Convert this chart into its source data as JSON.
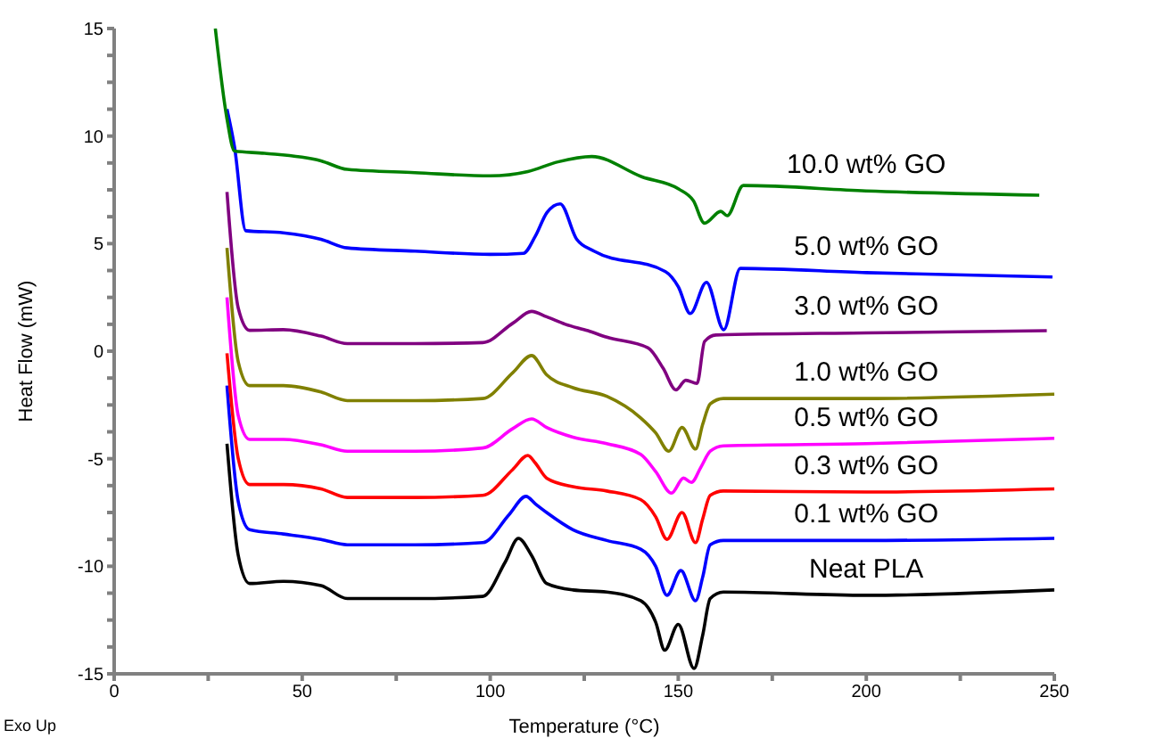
{
  "chart_data": {
    "type": "line",
    "xlabel": "Temperature (°C)",
    "ylabel": "Heat Flow (mW)",
    "xlim": [
      0,
      250
    ],
    "ylim": [
      -15,
      15
    ],
    "xticks": [
      0,
      {
        "value": 25,
        "label": null
      },
      50,
      {
        "value": 75,
        "label": null
      },
      100,
      {
        "value": 125,
        "label": null
      },
      150,
      {
        "value": 175,
        "label": null
      },
      200,
      {
        "value": 225,
        "label": null
      },
      250
    ],
    "yticks": [
      -15,
      {
        "value": -13.75,
        "label": null
      },
      {
        "value": -12.5,
        "label": null
      },
      {
        "value": -11.25,
        "label": null
      },
      -10,
      {
        "value": -8.75,
        "label": null
      },
      {
        "value": -7.5,
        "label": null
      },
      {
        "value": -6.25,
        "label": null
      },
      -5,
      {
        "value": -3.75,
        "label": null
      },
      {
        "value": -2.5,
        "label": null
      },
      {
        "value": -1.25,
        "label": null
      },
      0,
      {
        "value": 1.25,
        "label": null
      },
      {
        "value": 2.5,
        "label": null
      },
      {
        "value": 3.75,
        "label": null
      },
      5,
      {
        "value": 6.25,
        "label": null
      },
      {
        "value": 7.5,
        "label": null
      },
      {
        "value": 8.75,
        "label": null
      },
      10,
      {
        "value": 11.25,
        "label": null
      },
      {
        "value": 12.5,
        "label": null
      },
      {
        "value": 13.75,
        "label": null
      },
      15
    ],
    "marker": "none",
    "line_style": "solid",
    "annotations": [
      "Exo Up"
    ],
    "series": [
      {
        "name": "Neat PLA",
        "color": "#000000",
        "x": [
          30,
          33,
          36,
          45,
          55,
          62,
          80,
          98,
          104,
          107.5,
          111,
          115,
          122,
          131,
          140,
          144,
          146.4,
          150,
          154.2,
          156.5,
          158.5,
          162,
          200,
          250
        ],
        "values": [
          -4.3,
          -9.5,
          -10.8,
          -10.7,
          -10.9,
          -11.5,
          -11.5,
          -11.4,
          -9.8,
          -8.7,
          -9.5,
          -10.8,
          -11.1,
          -11.2,
          -11.6,
          -12.6,
          -13.9,
          -12.7,
          -14.75,
          -13.2,
          -11.5,
          -11.2,
          -11.35,
          -11.1
        ]
      },
      {
        "name": "0.1 wt% GO",
        "color": "#0000ff",
        "x": [
          30,
          33,
          36,
          45,
          55,
          62,
          80,
          98,
          105,
          109.5,
          112,
          115,
          122,
          131,
          140,
          144,
          147,
          150.7,
          154.6,
          156.5,
          158.5,
          162,
          200,
          250
        ],
        "values": [
          -1.6,
          -7,
          -8.3,
          -8.5,
          -8.75,
          -9,
          -9,
          -8.9,
          -7.6,
          -6.75,
          -7.1,
          -7.5,
          -8.3,
          -8.8,
          -9.2,
          -10,
          -11.35,
          -10.2,
          -11.6,
          -10.5,
          -9,
          -8.8,
          -8.8,
          -8.7
        ]
      },
      {
        "name": "0.3 wt% GO",
        "color": "#ff0000",
        "x": [
          30,
          33,
          36,
          45,
          55,
          62,
          80,
          98,
          106,
          110,
          112,
          115,
          122,
          131,
          140,
          144,
          147,
          151,
          154.6,
          156.5,
          158.5,
          162,
          200,
          250
        ],
        "values": [
          -0.1,
          -5,
          -6.2,
          -6.2,
          -6.4,
          -6.8,
          -6.8,
          -6.7,
          -5.5,
          -4.85,
          -5.2,
          -5.9,
          -6.3,
          -6.5,
          -6.9,
          -7.7,
          -8.75,
          -7.5,
          -8.9,
          -7.8,
          -6.7,
          -6.5,
          -6.55,
          -6.4
        ]
      },
      {
        "name": "0.5 wt% GO",
        "color": "#ff00ff",
        "x": [
          30,
          33,
          36,
          45,
          55,
          62,
          80,
          98,
          106,
          111,
          115,
          122,
          131,
          140,
          144,
          148.2,
          151.4,
          153.5,
          156,
          158.5,
          162,
          200,
          250
        ],
        "values": [
          2.5,
          -3,
          -4.1,
          -4.1,
          -4.35,
          -4.65,
          -4.65,
          -4.5,
          -3.6,
          -3.15,
          -3.55,
          -4,
          -4.3,
          -4.8,
          -5.6,
          -6.6,
          -5.9,
          -6.1,
          -5.4,
          -4.65,
          -4.4,
          -4.3,
          -4.05
        ]
      },
      {
        "name": "1.0 wt% GO",
        "color": "#808000",
        "x": [
          30,
          33,
          36,
          45,
          55,
          62,
          80,
          98,
          106,
          111,
          115,
          122,
          131,
          140,
          144,
          147.5,
          151,
          154.6,
          156.5,
          158.5,
          162,
          200,
          250
        ],
        "values": [
          4.8,
          -0.5,
          -1.6,
          -1.6,
          -1.9,
          -2.3,
          -2.3,
          -2.2,
          -1,
          -0.2,
          -1.1,
          -1.7,
          -2.1,
          -3.1,
          -3.8,
          -4.65,
          -3.55,
          -4.55,
          -3.4,
          -2.45,
          -2.2,
          -2.2,
          -2
        ]
      },
      {
        "name": "3.0 wt% GO",
        "color": "#800080",
        "x": [
          30,
          33,
          36,
          45,
          55,
          62,
          80,
          98,
          106,
          111,
          115,
          120,
          126,
          131,
          142,
          146,
          149.4,
          152,
          155,
          157,
          160,
          200,
          248
        ],
        "values": [
          7.4,
          2,
          0.97,
          1,
          0.7,
          0.35,
          0.35,
          0.4,
          1.3,
          1.85,
          1.6,
          1.25,
          0.95,
          0.65,
          0.15,
          -0.8,
          -1.8,
          -1.35,
          -1.5,
          0.45,
          0.75,
          0.85,
          0.95
        ]
      },
      {
        "name": "5.0 wt% GO",
        "color": "#0000ff",
        "x": [
          30,
          32,
          35,
          45,
          55,
          62,
          80,
          100,
          108.8,
          112,
          115.1,
          118.6,
          123,
          127.6,
          146.6,
          150,
          153.2,
          157.5,
          162.1,
          166.5,
          200,
          249.5
        ],
        "values": [
          11.25,
          9.5,
          5.6,
          5.5,
          5.2,
          4.8,
          4.65,
          4.5,
          4.55,
          5.35,
          6.45,
          6.85,
          5.2,
          4.65,
          3.7,
          3,
          1.75,
          3.2,
          1,
          3.85,
          3.65,
          3.45
        ]
      },
      {
        "name": "10.0 wt% GO",
        "color": "#008000",
        "x": [
          26.9,
          30,
          32,
          40,
          55,
          62,
          80,
          100,
          110,
          118,
          127,
          140.4,
          150,
          154,
          157,
          161.3,
          163,
          167.3,
          200,
          246
        ],
        "values": [
          15,
          10.8,
          9.3,
          9.2,
          8.85,
          8.45,
          8.3,
          8.15,
          8.35,
          8.8,
          9.05,
          8.1,
          7.55,
          7,
          5.95,
          6.5,
          6.3,
          7.7,
          7.45,
          7.25
        ]
      }
    ]
  }
}
